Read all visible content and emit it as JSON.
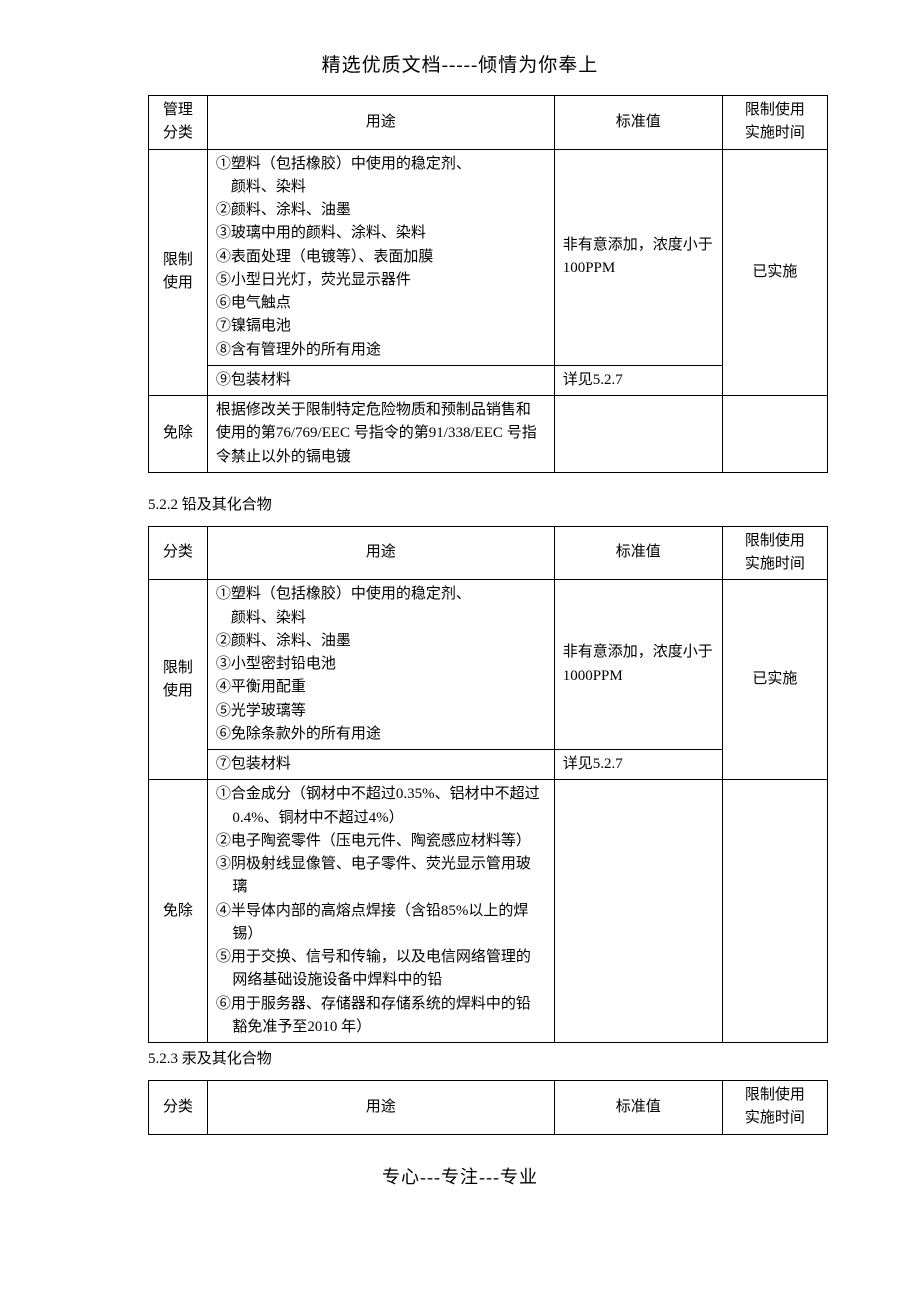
{
  "header": "精选优质文档-----倾情为你奉上",
  "footer": "专心---专注---专业",
  "columns": {
    "cat1": "管理\n分类",
    "cat2": "分类",
    "use": "用途",
    "std": "标准值",
    "time": "限制使用\n实施时间"
  },
  "table1": {
    "row1": {
      "cat": "限制\n使用",
      "use": "①塑料（包括橡胶）中使用的稳定剂、\n　颜料、染料\n②颜料、涂料、油墨\n③玻璃中用的颜料、涂料、染料\n④表面处理（电镀等）、表面加膜\n⑤小型日光灯，荧光显示器件\n⑥电气触点\n⑦镍镉电池\n⑧含有管理外的所有用途",
      "std": "非有意添加，浓度小于100PPM",
      "time": "已实施"
    },
    "row2": {
      "use": "⑨包装材料",
      "std": "详见5.2.7"
    },
    "row3": {
      "cat": "免除",
      "use": "根据修改关于限制特定危险物质和预制品销售和使用的第76/769/EEC 号指令的第91/338/EEC 号指令禁止以外的镉电镀"
    }
  },
  "section522": "5.2.2 铅及其化合物",
  "table2": {
    "row1": {
      "cat": "限制\n使用",
      "use": "①塑料（包括橡胶）中使用的稳定剂、\n　颜料、染料\n②颜料、涂料、油墨\n③小型密封铅电池\n④平衡用配重\n⑤光学玻璃等\n⑥免除条款外的所有用途",
      "std": "非有意添加，浓度小于1000PPM",
      "time": "已实施"
    },
    "row2": {
      "use": "⑦包装材料",
      "std": "详见5.2.7"
    },
    "row3": {
      "cat": "免除",
      "use_lines": [
        "①合金成分（钢材中不超过0.35%、铝材中不超过0.4%、铜材中不超过4%）",
        "②电子陶瓷零件（压电元件、陶瓷感应材料等）",
        "③阴极射线显像管、电子零件、荧光显示管用玻璃",
        "④半导体内部的高熔点焊接（含铅85%以上的焊锡）",
        "⑤用于交换、信号和传输，以及电信网络管理的网络基础设施设备中焊料中的铅",
        "⑥用于服务器、存储器和存储系统的焊料中的铅豁免准予至2010 年）"
      ]
    }
  },
  "section523": "5.2.3 汞及其化合物"
}
